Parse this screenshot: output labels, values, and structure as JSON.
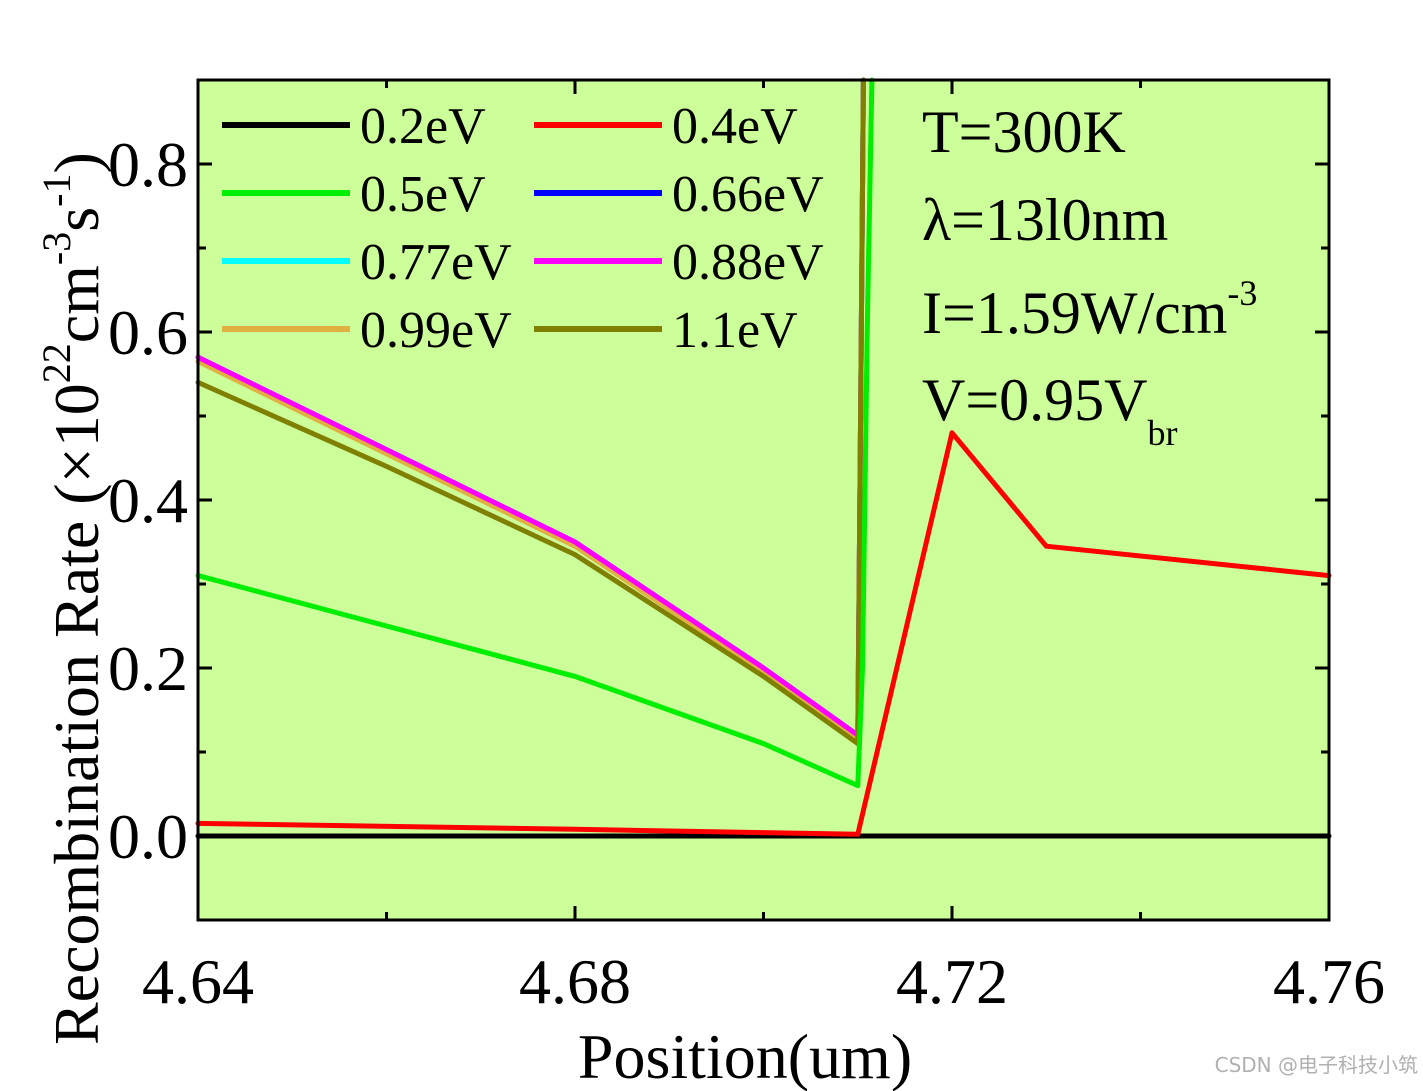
{
  "chart_data": {
    "type": "line",
    "title": "",
    "xlabel": "Position(um)",
    "ylabel_main": "Recombination Rate (×10",
    "ylabel_sup1": "22",
    "ylabel_mid": "cm",
    "ylabel_sup2": "-3",
    "ylabel_mid2": "s",
    "ylabel_sup3": "-1",
    "ylabel_end": ")",
    "xlim": [
      4.64,
      4.76
    ],
    "ylim": [
      -0.1,
      0.9
    ],
    "x_ticks": [
      4.64,
      4.68,
      4.72,
      4.76
    ],
    "x_tick_labels": [
      "4.64",
      "4.68",
      "4.72",
      "4.76"
    ],
    "x_minor_ticks": [
      4.66,
      4.7,
      4.74
    ],
    "y_ticks": [
      0.0,
      0.2,
      0.4,
      0.6,
      0.8
    ],
    "y_tick_labels": [
      "0.0",
      "0.2",
      "0.4",
      "0.6",
      "0.8"
    ],
    "y_minor_ticks": [
      -0.1,
      0.1,
      0.3,
      0.5,
      0.7
    ],
    "plot_background": "#ccff99",
    "legend_placement": "top-left",
    "series": [
      {
        "name": "0.2eV",
        "color": "#000000",
        "x": [
          4.64,
          4.76
        ],
        "y": [
          0.0,
          0.0
        ]
      },
      {
        "name": "0.4eV",
        "color": "#ff0000",
        "x": [
          4.64,
          4.68,
          4.7,
          4.71,
          4.72,
          4.73,
          4.76
        ],
        "y": [
          0.015,
          0.008,
          0.004,
          0.002,
          0.48,
          0.345,
          0.31
        ]
      },
      {
        "name": "0.5eV",
        "color": "#00ee00",
        "x": [
          4.64,
          4.66,
          4.68,
          4.7,
          4.71,
          4.7105,
          4.711,
          4.7115
        ],
        "y": [
          0.31,
          0.25,
          0.19,
          0.11,
          0.06,
          0.2,
          0.6,
          0.9
        ]
      },
      {
        "name": "0.66eV",
        "color": "#0000ff",
        "x": [
          4.64,
          4.66,
          4.68,
          4.7,
          4.71,
          4.7103,
          4.7106
        ],
        "y": [
          0.57,
          0.46,
          0.35,
          0.2,
          0.12,
          0.5,
          0.9
        ]
      },
      {
        "name": "0.77eV",
        "color": "#00ffff",
        "x": [
          4.64,
          4.66,
          4.68,
          4.7,
          4.71,
          4.7103,
          4.7106
        ],
        "y": [
          0.57,
          0.46,
          0.35,
          0.2,
          0.12,
          0.5,
          0.9
        ]
      },
      {
        "name": "0.88eV",
        "color": "#ff00ff",
        "x": [
          4.64,
          4.66,
          4.68,
          4.7,
          4.71,
          4.7103,
          4.7106
        ],
        "y": [
          0.57,
          0.46,
          0.35,
          0.2,
          0.12,
          0.5,
          0.9
        ]
      },
      {
        "name": "0.99eV",
        "color": "#e0b040",
        "x": [
          4.64,
          4.66,
          4.68,
          4.7,
          4.71,
          4.7103,
          4.7106
        ],
        "y": [
          0.565,
          0.455,
          0.345,
          0.195,
          0.115,
          0.5,
          0.9
        ]
      },
      {
        "name": "1.1eV",
        "color": "#808000",
        "x": [
          4.64,
          4.66,
          4.68,
          4.7,
          4.71,
          4.7103,
          4.7106
        ],
        "y": [
          0.54,
          0.44,
          0.335,
          0.19,
          0.11,
          0.5,
          0.9
        ]
      }
    ],
    "annotations": {
      "temperature": "T=300K",
      "wavelength": "λ=13l0nm",
      "intensity_main": "I=1.59W/cm",
      "intensity_sup": "-3",
      "voltage_main": "V=0.95V",
      "voltage_sub": "br"
    }
  },
  "watermark": "CSDN @电子科技小筑"
}
